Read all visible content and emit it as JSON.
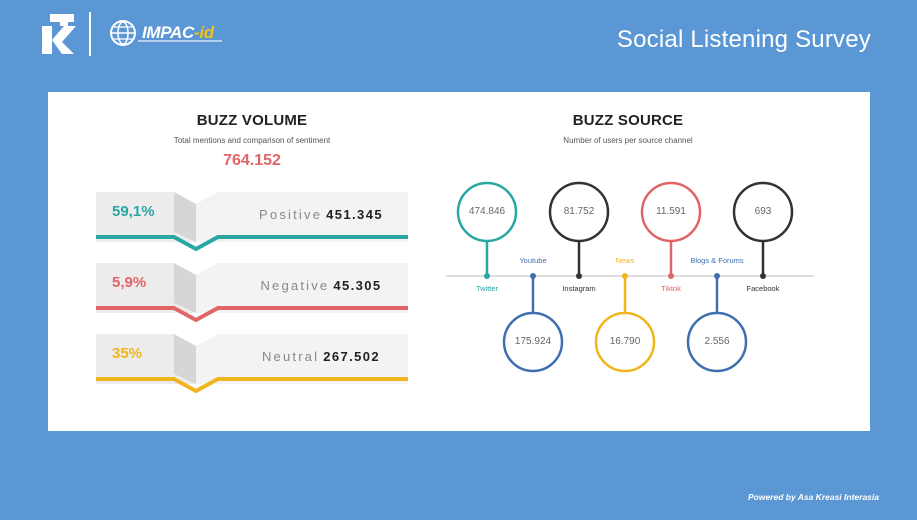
{
  "header": {
    "brand_left": "K",
    "brand_impac": "IMPAC",
    "brand_impac_suffix": "-id",
    "title": "Social Listening Survey"
  },
  "buzz_volume": {
    "title": "BUZZ VOLUME",
    "subtitle": "Total mentions and comparison of sentiment",
    "total": "764.152",
    "bands": [
      {
        "percent": "59,1%",
        "label": "Positive",
        "value": "451.345",
        "color": "#2aa6a3"
      },
      {
        "percent": "5,9%",
        "label": "Negative",
        "value": "45.305",
        "color": "#e06567"
      },
      {
        "percent": "35%",
        "label": "Neutral",
        "value": "267.502",
        "color": "#f0b51d"
      }
    ]
  },
  "buzz_source": {
    "title": "BUZZ SOURCE",
    "subtitle": "Number of users per source channel",
    "channels": [
      {
        "name": "Twitter",
        "value": "474.846",
        "color": "#2aa6a3",
        "position": "above"
      },
      {
        "name": "Youtube",
        "value": "175.924",
        "color": "#3f6fb0",
        "position": "below"
      },
      {
        "name": "Instagram",
        "value": "81.752",
        "color": "#333333",
        "position": "above"
      },
      {
        "name": "News",
        "value": "16.790",
        "color": "#f0b51d",
        "position": "below"
      },
      {
        "name": "Tiktok",
        "value": "11.591",
        "color": "#e06567",
        "position": "above"
      },
      {
        "name": "Blogs & Forums",
        "value": "2.556",
        "color": "#3f6fb0",
        "position": "below"
      },
      {
        "name": "Facebook",
        "value": "693",
        "color": "#333333",
        "position": "above"
      }
    ]
  },
  "footer": {
    "text": "Powered by Asa Kreasi Interasia"
  },
  "colors": {
    "background": "#5b97d4",
    "card": "#ffffff"
  }
}
